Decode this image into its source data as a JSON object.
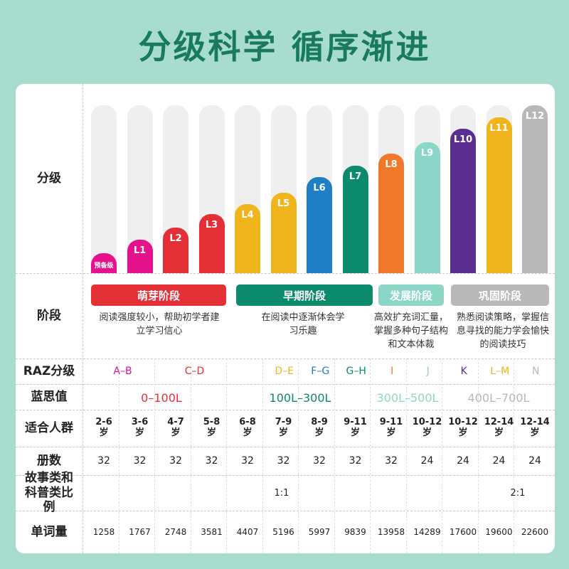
{
  "title": "分级科学 循序渐进",
  "row_labels": {
    "level": "分级",
    "stage": "阶段",
    "raz": "RAZ分级",
    "lexile": "蓝思值",
    "audience": "适合人群",
    "volumes": "册数",
    "ratio": "故事类和科普类比例",
    "words": "单词量"
  },
  "levels": [
    {
      "label": "预备级",
      "color": "#e6128c",
      "fill": 0.12
    },
    {
      "label": "L1",
      "color": "#e6128c",
      "fill": 0.2
    },
    {
      "label": "L2",
      "color": "#e52f36",
      "fill": 0.27
    },
    {
      "label": "L3",
      "color": "#e52f36",
      "fill": 0.35
    },
    {
      "label": "L4",
      "color": "#f0b51c",
      "fill": 0.41
    },
    {
      "label": "L5",
      "color": "#f0b51c",
      "fill": 0.48
    },
    {
      "label": "L6",
      "color": "#1f7fc4",
      "fill": 0.57
    },
    {
      "label": "L7",
      "color": "#0c8a6c",
      "fill": 0.64
    },
    {
      "label": "L8",
      "color": "#f0782a",
      "fill": 0.71
    },
    {
      "label": "L9",
      "color": "#8bd6c6",
      "fill": 0.78
    },
    {
      "label": "L10",
      "color": "#5a2d91",
      "fill": 0.86
    },
    {
      "label": "L11",
      "color": "#f0b51c",
      "fill": 0.93
    },
    {
      "label": "L12",
      "color": "#b8b8b8",
      "fill": 1.0
    }
  ],
  "stages": [
    {
      "name": "萌芽阶段",
      "color": "#e52f36",
      "desc": "阅读强度较小，帮助初学者建立学习信心"
    },
    {
      "name": "早期阶段",
      "color": "#0c8a6c",
      "desc": "在阅读中逐渐体会学习乐趣"
    },
    {
      "name": "发展阶段",
      "color": "#8bd6c6",
      "desc": "高效扩充词汇量，掌握多种句子结构和文本体裁"
    },
    {
      "name": "巩固阶段",
      "color": "#b8b8b8",
      "desc": "熟悉阅读策略，掌握信息寻找的能力学会愉快的阅读技巧"
    }
  ],
  "raz": [
    {
      "text": "A–B",
      "color": "#e6128c"
    },
    {
      "text": "C–D",
      "color": "#e52f36"
    },
    {
      "text": "D–E",
      "color": "#f0b51c"
    },
    {
      "text": "F–G",
      "color": "#1f7fc4"
    },
    {
      "text": "G–H",
      "color": "#0c8a6c"
    },
    {
      "text": "I",
      "color": "#f0782a"
    },
    {
      "text": "J",
      "color": "#8bd6c6"
    },
    {
      "text": "K",
      "color": "#5a2d91"
    },
    {
      "text": "L–M",
      "color": "#f0b51c"
    },
    {
      "text": "N",
      "color": "#b8b8b8"
    }
  ],
  "lexile": [
    {
      "text": "0–100L",
      "color": "#e52f36"
    },
    {
      "text": "100L–300L",
      "color": "#0c8a6c"
    },
    {
      "text": "300L–500L",
      "color": "#8bd6c6"
    },
    {
      "text": "400L–700L",
      "color": "#b8b8b8"
    }
  ],
  "audience": [
    "2-6\n岁",
    "3-6\n岁",
    "4-7\n岁",
    "5-8\n岁",
    "6-8\n岁",
    "7-9\n岁",
    "8-9\n岁",
    "9-11\n岁",
    "9-11\n岁",
    "10-12\n岁",
    "10-12\n岁",
    "12-14\n岁",
    "12-14\n岁"
  ],
  "volumes": [
    "32",
    "32",
    "32",
    "32",
    "32",
    "32",
    "32",
    "32",
    "32",
    "24",
    "24",
    "24",
    "24"
  ],
  "ratio": [
    "1:1",
    "2:1"
  ],
  "words": [
    "1258",
    "1767",
    "2748",
    "3581",
    "4407",
    "5196",
    "5997",
    "9839",
    "13958",
    "14289",
    "17600",
    "19600",
    "22600"
  ],
  "colors": {
    "background": "#a7dccf",
    "title": "#1a7a5e"
  }
}
